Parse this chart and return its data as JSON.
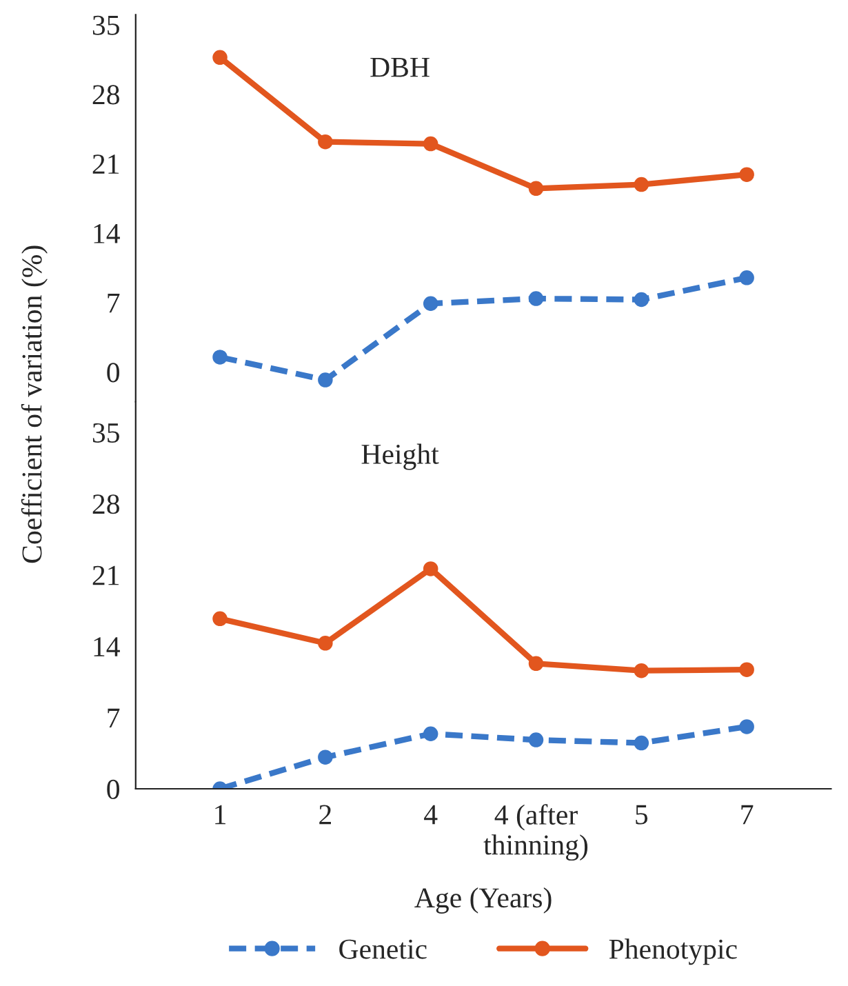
{
  "chart_data": [
    {
      "type": "line",
      "title": "DBH",
      "ylabel": "Coefficient of variation (%)",
      "categories": [
        null,
        null,
        null,
        null,
        null,
        null
      ],
      "ylim": [
        -3,
        36
      ],
      "yticks": [
        0,
        7,
        14,
        21,
        28,
        35
      ],
      "tick_labels": "y",
      "grid": false,
      "marker": "circle",
      "series": [
        {
          "color": "#3a78c9",
          "line_style": "dashed",
          "values": [
            1.5,
            -0.8,
            6.9,
            7.4,
            7.3,
            9.5
          ]
        },
        {
          "color": "#e2561e",
          "line_style": "solid",
          "values": [
            31.7,
            23.2,
            23.0,
            18.5,
            18.9,
            19.9
          ]
        }
      ]
    },
    {
      "type": "line",
      "title": "Height",
      "xlabel": "Age (Years)",
      "categories": [
        "1",
        "2",
        "4",
        "4 (after\nthinning)",
        "5",
        "7"
      ],
      "ylim": [
        0,
        38
      ],
      "yticks": [
        0,
        7,
        14,
        21,
        28,
        35
      ],
      "grid": false,
      "legend": "bottom",
      "marker": "circle",
      "series": [
        {
          "name": "Genetic",
          "color": "#3a78c9",
          "line_style": "dashed",
          "values": [
            0,
            3.1,
            5.4,
            4.8,
            4.5,
            6.1
          ]
        },
        {
          "name": "Phenotypic",
          "color": "#e2561e",
          "line_style": "solid",
          "values": [
            16.7,
            14.3,
            21.6,
            12.3,
            11.6,
            11.7
          ]
        }
      ]
    }
  ]
}
